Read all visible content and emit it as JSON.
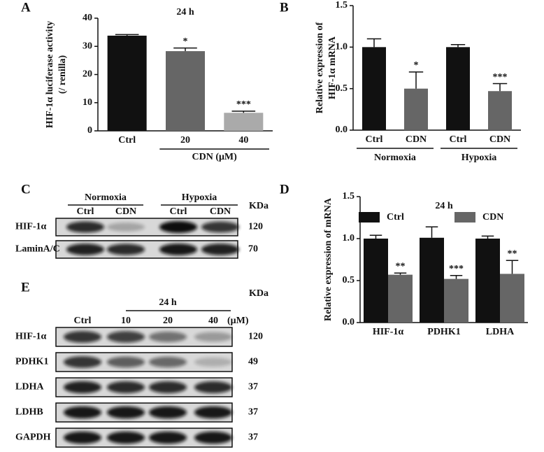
{
  "chart_data": [
    {
      "type": "bar",
      "panel": "A",
      "title": "24 h",
      "ylabel": [
        "HIF-1α luciferase activity",
        "(/ renilla)"
      ],
      "categories": [
        "Ctrl",
        "20",
        "40"
      ],
      "values": [
        33.8,
        28.3,
        6.4
      ],
      "errors": [
        0.4,
        1.1,
        0.6
      ],
      "annotations": [
        null,
        "*",
        "***"
      ],
      "colors": [
        "#111111",
        "#666666",
        "#aaaaaa"
      ],
      "xlabel": "CDN (μM)",
      "ylim": [
        0,
        40
      ],
      "yticks": [
        0,
        10,
        20,
        30,
        40
      ]
    },
    {
      "type": "bar",
      "panel": "B",
      "ylabel": [
        "Relative expression of",
        "HIF-1α mRNA"
      ],
      "categories": [
        "Ctrl",
        "CDN",
        "Ctrl",
        "CDN"
      ],
      "groups": [
        "Normoxia",
        "Hypoxia"
      ],
      "values": [
        1.0,
        0.5,
        1.0,
        0.47
      ],
      "errors": [
        0.1,
        0.2,
        0.03,
        0.09
      ],
      "annotations": [
        null,
        "*",
        null,
        "***"
      ],
      "colors": [
        "#111111",
        "#666666",
        "#111111",
        "#666666"
      ],
      "ylim": [
        0,
        1.5
      ],
      "yticks": [
        {
          "value": 0,
          "label": "0.0"
        },
        {
          "value": 0.5,
          "label": "0.5"
        },
        {
          "value": 1,
          "label": "1.0"
        },
        {
          "value": 1.5,
          "label": "1.5"
        }
      ]
    },
    {
      "type": "grouped_bar",
      "panel": "D",
      "title": "24 h",
      "ylabel": "Relative expression of mRNA",
      "categories": [
        "HIF-1α",
        "PDHK1",
        "LDHA"
      ],
      "series": [
        {
          "name": "Ctrl",
          "color": "#111111",
          "values": [
            1.0,
            1.01,
            1.0
          ],
          "errors": [
            0.04,
            0.13,
            0.03
          ]
        },
        {
          "name": "CDN",
          "color": "#666666",
          "values": [
            0.57,
            0.52,
            0.58
          ],
          "errors": [
            0.02,
            0.04,
            0.16
          ],
          "annotations": [
            "**",
            "***",
            "**"
          ]
        }
      ],
      "ylim": [
        0,
        1.5
      ],
      "yticks": [
        {
          "value": 0,
          "label": "0.0"
        },
        {
          "value": 0.5,
          "label": "0.5"
        },
        {
          "value": 1,
          "label": "1.0"
        },
        {
          "value": 1.5,
          "label": "1.5"
        }
      ]
    }
  ],
  "blots": [
    {
      "panel": "C",
      "groups": [
        "Normoxia",
        "Hypoxia"
      ],
      "lanes": [
        "Ctrl",
        "CDN",
        "Ctrl",
        "CDN"
      ],
      "unit_header": "KDa",
      "rows": [
        {
          "label": "HIF-1α",
          "kda": 120
        },
        {
          "label": "LaminA/C",
          "kda": 70
        }
      ]
    },
    {
      "panel": "E",
      "header": "24 h",
      "lanes": [
        "Ctrl",
        "10",
        "20",
        "40"
      ],
      "lane_unit": "(μM)",
      "unit_header": "KDa",
      "rows": [
        {
          "label": "HIF-1α",
          "kda": 120
        },
        {
          "label": "PDHK1",
          "kda": 49
        },
        {
          "label": "LDHA",
          "kda": 37
        },
        {
          "label": "LDHB",
          "kda": 37
        },
        {
          "label": "GAPDH",
          "kda": 37
        }
      ]
    }
  ]
}
